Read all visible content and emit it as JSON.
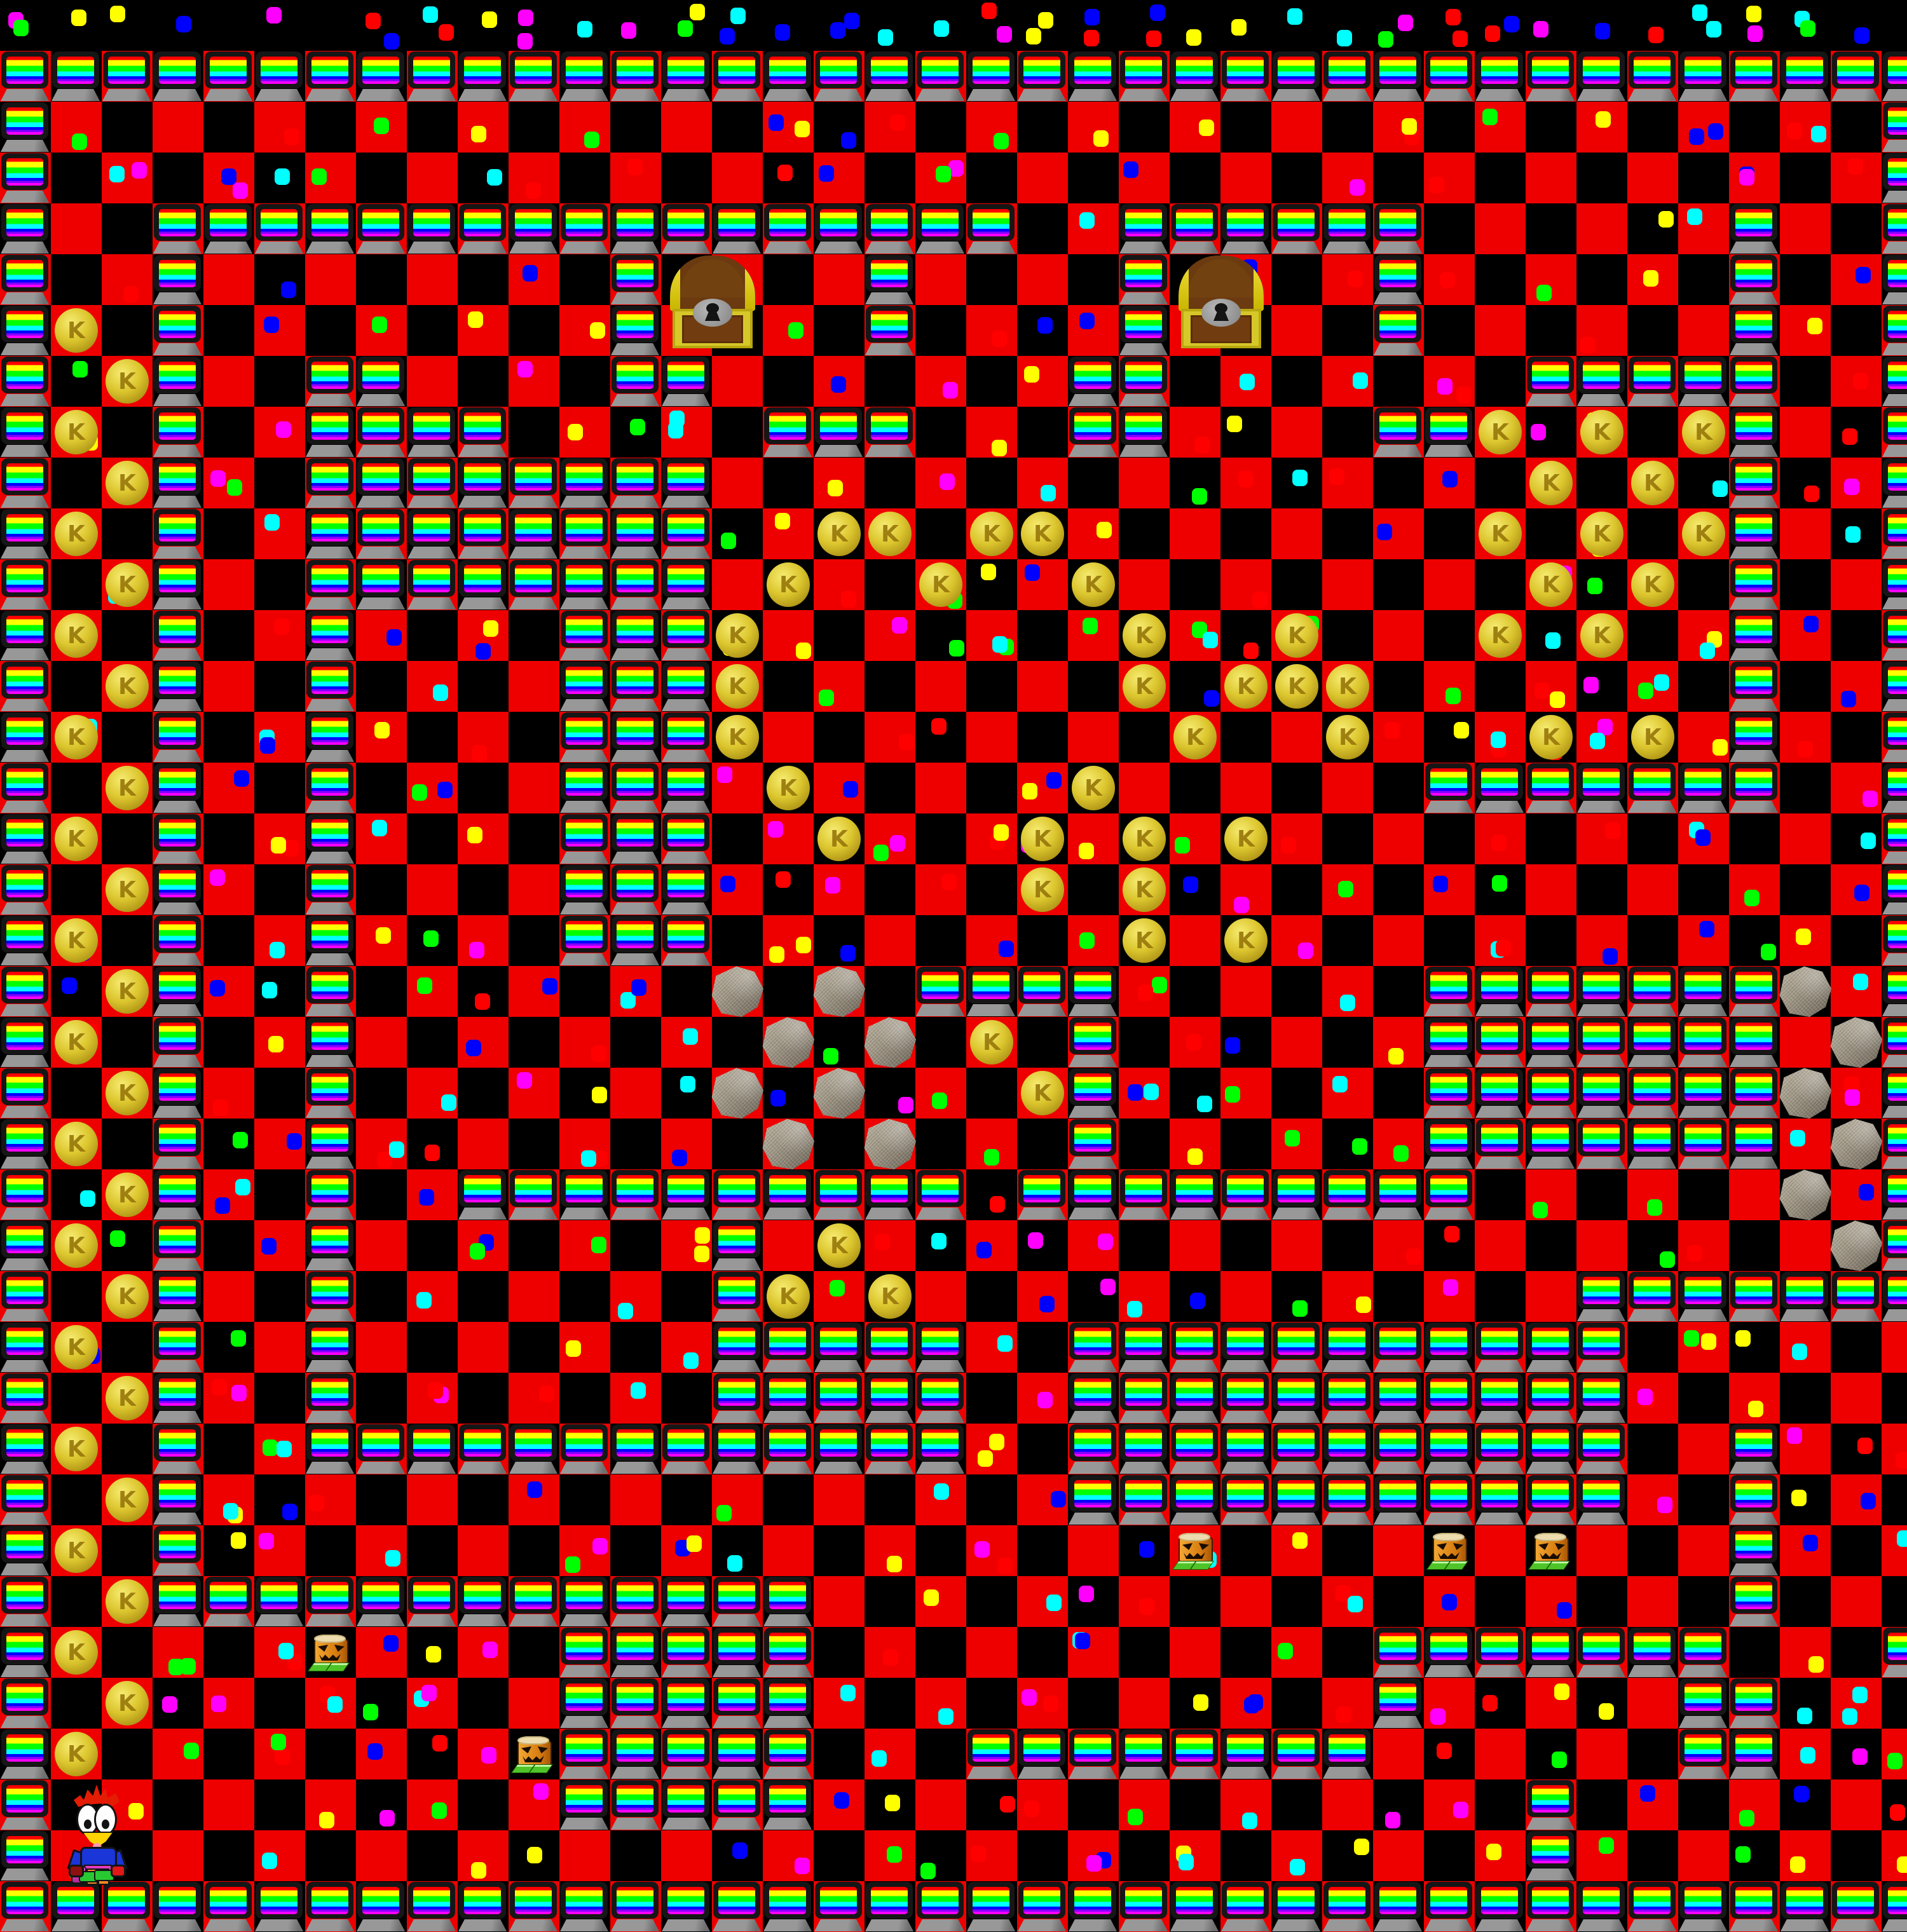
{
  "board": {
    "cols": 38,
    "rows": 38,
    "tile_size": 80,
    "legend": {
      "#": "rainbow-wall-block",
      ".": "checkerboard-floor",
      "b": "black-floor",
      "o": "gold-coin",
      "S": "rock-boulder",
      "P": "pumpkin-enemy"
    },
    "grid": [
      "bbbbbbbbbbbbbbbbbbbbbbbbbbbbbbbbbbbbbb",
      "######################################",
      "#....................................#",
      "#....................................#",
      "#..#################..######......#..#",
      "#..#........#....#....#....#......#..#",
      "#o.#........#....#....#....#......#..#",
      "#.o#..##....##.......##.......#####..#",
      "#o.#..####.....###...##....##o.o.o#..#",
      "#.o#..########................o.o.#..#",
      "#o.#..########..oo.oo........o.o.o#..#",
      "#.o#..########.o..o..o........o.o.#..#",
      "#o.#..#....###o.......o..o...o.o..#..#",
      "#.o#..#....###o.......o.ooo.......#..#",
      "#o.#..#....###o........o..o...o.o.#..#",
      "#.o#..#....###.o.....o......#######..#",
      "#o.#..#....###..o...o.o.o............#",
      "#.o#..#....###......o.o..............#",
      "#o.#..#....###........o.o............#",
      "#.o#..#.......S.S.####......#######S.#",
      "#o.#..#........S.S.o.#......#######.S#",
      "#.o#..#.......S.S...o#......#######S.#",
      "#o.#..#........S.S...#......#######.S#",
      "#.o#..#..##########.#########......S.#",
      "#o.#..#.......#.o...................S#",
      "#.o#..#.......#o.o.............#######",
      "#o.#..#.......#####..###########......",
      "#.o#..#.......#####..###########......",
      "#o.#..#############..###########..#...",
      "#.o#.................###########..#...",
      "#o.#...................P....P.P...#...",
      "#.o#############..................#...",
      "#o....P....#####...........#######...#",
      "#.o........#####...........#.....##...",
      "#o........P#####...########......##...",
      "#..........#####..............#.......",
      "#.............................#.......",
      "######################################"
    ]
  },
  "sprites": {
    "chests": [
      {
        "row": 5,
        "col": 13
      },
      {
        "row": 5,
        "col": 23
      }
    ],
    "player": {
      "row": 36,
      "col": 1
    },
    "coin_letter": "K"
  },
  "colors": {
    "floor_red": "#ee0000",
    "floor_black": "#000000",
    "wall_stripes": [
      "#ff0000",
      "#ffff00",
      "#00ff00",
      "#00ffff",
      "#0000ff",
      "#8800ff",
      "#ff00ff"
    ],
    "wall_frame": "#161616",
    "wall_foot": "#8f8f8f",
    "coin_gold": "#dcc62e",
    "rock_gray": "#a59c8a",
    "chest_wood": "#6b3a10",
    "chest_trim": "#d6c829",
    "pumpkin_orange": "#e08818",
    "pumpkin_feet_green": "#4ec428",
    "player_shirt_blue": "#1a35d8",
    "player_pants_orange": "#f08a28",
    "player_shoes_green": "#28c832",
    "player_hair_red": "#e41c04"
  },
  "dot_colors": [
    "#ff0000",
    "#ffff00",
    "#00ff00",
    "#00ffff",
    "#0000ff",
    "#ff00ff"
  ]
}
